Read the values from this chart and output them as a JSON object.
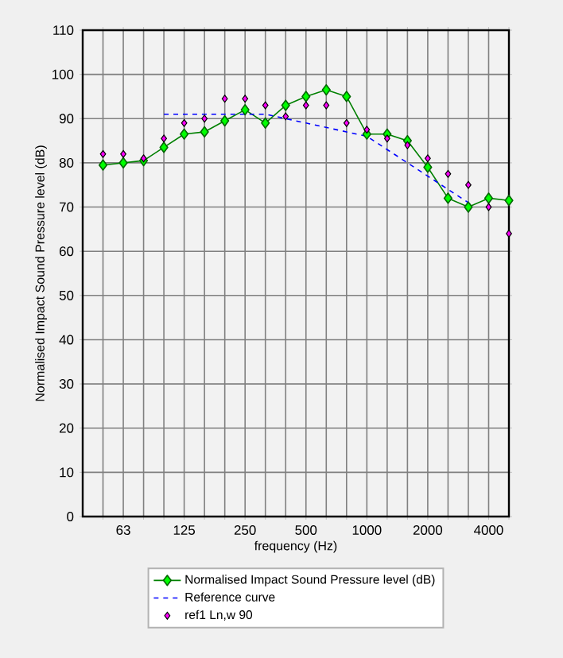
{
  "chart_data": {
    "type": "line",
    "xlabel": "frequency (Hz)",
    "ylabel": "Normalised Impact Sound Pressure level (dB)",
    "categories": [
      null,
      "63",
      null,
      null,
      "125",
      null,
      null,
      "250",
      null,
      null,
      "500",
      null,
      null,
      "1000",
      null,
      null,
      "2000",
      null,
      null,
      "4000",
      null
    ],
    "series": [
      {
        "name": "Normalised Impact Sound Pressure level (dB)",
        "color": "#008000",
        "marker": "diamond",
        "line_style": "solid",
        "values": [
          79.5,
          80,
          80.5,
          83.5,
          86.5,
          87,
          89.5,
          92,
          89,
          93,
          95,
          96.5,
          95,
          86.5,
          86.5,
          85,
          79,
          72,
          70,
          72,
          71.5
        ]
      },
      {
        "name": "Reference curve",
        "color": "#0000ff",
        "line_style": "dashed",
        "marker": "none",
        "values": [
          null,
          null,
          null,
          91,
          91,
          91,
          91,
          91,
          91,
          90,
          89,
          88,
          87,
          86,
          83,
          80,
          77,
          74,
          71,
          null,
          null
        ]
      },
      {
        "name": "ref1 Ln,w 90",
        "type": "scatter",
        "color": "#ff00ff",
        "marker": "diamond",
        "values": [
          82,
          82,
          81,
          85.5,
          89,
          90,
          94.5,
          94.5,
          93,
          90.5,
          93,
          93,
          89,
          87.5,
          85.5,
          84,
          81,
          77.5,
          75,
          70,
          64
        ]
      }
    ],
    "ylim": [
      0,
      110
    ],
    "yticks": [
      0,
      10,
      20,
      30,
      40,
      50,
      60,
      70,
      80,
      90,
      100,
      110
    ],
    "grid": true,
    "legend": "bottom"
  }
}
